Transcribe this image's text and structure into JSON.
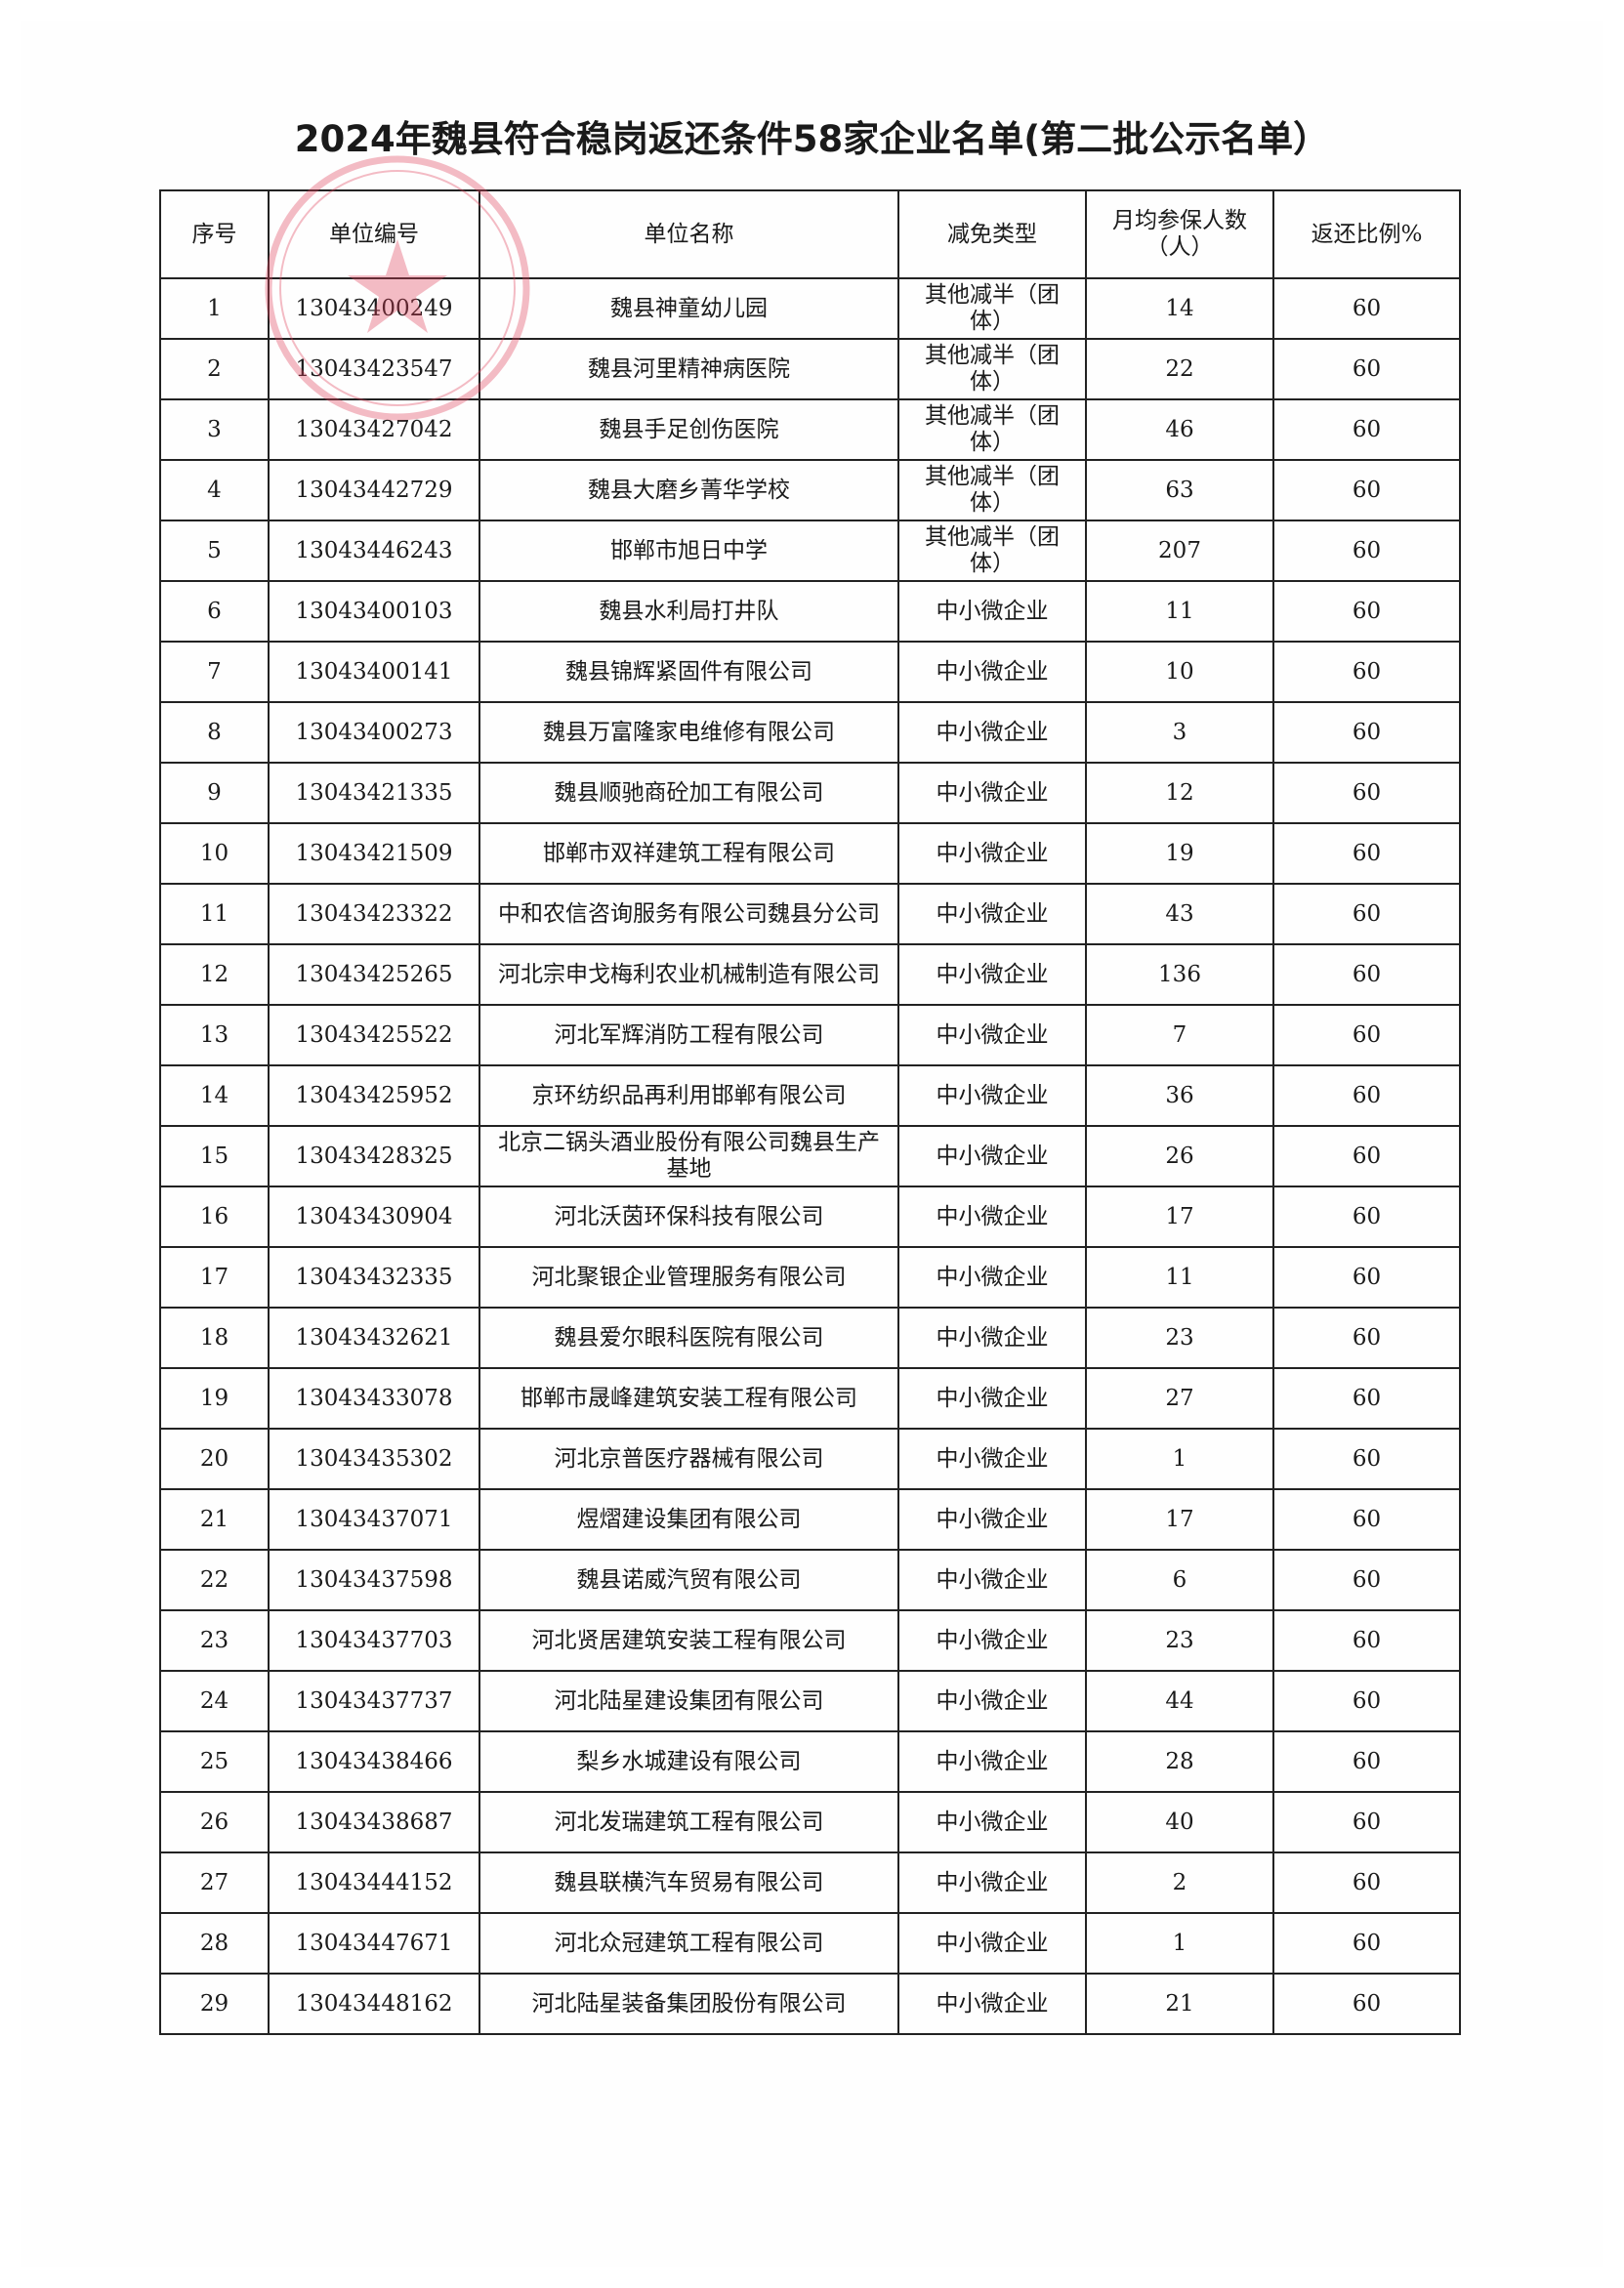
{
  "title": "2024年魏县符合稳岗返还条件58家企业名单(第二批公示名单）",
  "stamp_color": "#e0405a",
  "table": {
    "headers": [
      "序号",
      "单位编号",
      "单位名称",
      "减免类型",
      "月均参保人数（人）",
      "返还比例%"
    ],
    "rows": [
      [
        "1",
        "13043400249",
        "魏县神童幼儿园",
        "其他减半（团体）",
        "14",
        "60"
      ],
      [
        "2",
        "13043423547",
        "魏县河里精神病医院",
        "其他减半（团体）",
        "22",
        "60"
      ],
      [
        "3",
        "13043427042",
        "魏县手足创伤医院",
        "其他减半（团体）",
        "46",
        "60"
      ],
      [
        "4",
        "13043442729",
        "魏县大磨乡菁华学校",
        "其他减半（团体）",
        "63",
        "60"
      ],
      [
        "5",
        "13043446243",
        "邯郸市旭日中学",
        "其他减半（团体）",
        "207",
        "60"
      ],
      [
        "6",
        "13043400103",
        "魏县水利局打井队",
        "中小微企业",
        "11",
        "60"
      ],
      [
        "7",
        "13043400141",
        "魏县锦辉紧固件有限公司",
        "中小微企业",
        "10",
        "60"
      ],
      [
        "8",
        "13043400273",
        "魏县万富隆家电维修有限公司",
        "中小微企业",
        "3",
        "60"
      ],
      [
        "9",
        "13043421335",
        "魏县顺驰商砼加工有限公司",
        "中小微企业",
        "12",
        "60"
      ],
      [
        "10",
        "13043421509",
        "邯郸市双祥建筑工程有限公司",
        "中小微企业",
        "19",
        "60"
      ],
      [
        "11",
        "13043423322",
        "中和农信咨询服务有限公司魏县分公司",
        "中小微企业",
        "43",
        "60"
      ],
      [
        "12",
        "13043425265",
        "河北宗申戈梅利农业机械制造有限公司",
        "中小微企业",
        "136",
        "60"
      ],
      [
        "13",
        "13043425522",
        "河北军辉消防工程有限公司",
        "中小微企业",
        "7",
        "60"
      ],
      [
        "14",
        "13043425952",
        "京环纺织品再利用邯郸有限公司",
        "中小微企业",
        "36",
        "60"
      ],
      [
        "15",
        "13043428325",
        "北京二锅头酒业股份有限公司魏县生产基地",
        "中小微企业",
        "26",
        "60"
      ],
      [
        "16",
        "13043430904",
        "河北沃茵环保科技有限公司",
        "中小微企业",
        "17",
        "60"
      ],
      [
        "17",
        "13043432335",
        "河北聚银企业管理服务有限公司",
        "中小微企业",
        "11",
        "60"
      ],
      [
        "18",
        "13043432621",
        "魏县爱尔眼科医院有限公司",
        "中小微企业",
        "23",
        "60"
      ],
      [
        "19",
        "13043433078",
        "邯郸市晟峰建筑安装工程有限公司",
        "中小微企业",
        "27",
        "60"
      ],
      [
        "20",
        "13043435302",
        "河北京普医疗器械有限公司",
        "中小微企业",
        "1",
        "60"
      ],
      [
        "21",
        "13043437071",
        "煜熠建设集团有限公司",
        "中小微企业",
        "17",
        "60"
      ],
      [
        "22",
        "13043437598",
        "魏县诺威汽贸有限公司",
        "中小微企业",
        "6",
        "60"
      ],
      [
        "23",
        "13043437703",
        "河北贤居建筑安装工程有限公司",
        "中小微企业",
        "23",
        "60"
      ],
      [
        "24",
        "13043437737",
        "河北陆星建设集团有限公司",
        "中小微企业",
        "44",
        "60"
      ],
      [
        "25",
        "13043438466",
        "梨乡水城建设有限公司",
        "中小微企业",
        "28",
        "60"
      ],
      [
        "26",
        "13043438687",
        "河北发瑞建筑工程有限公司",
        "中小微企业",
        "40",
        "60"
      ],
      [
        "27",
        "13043444152",
        "魏县联横汽车贸易有限公司",
        "中小微企业",
        "2",
        "60"
      ],
      [
        "28",
        "13043447671",
        "河北众冠建筑工程有限公司",
        "中小微企业",
        "1",
        "60"
      ],
      [
        "29",
        "13043448162",
        "河北陆星装备集团股份有限公司",
        "中小微企业",
        "21",
        "60"
      ]
    ]
  }
}
